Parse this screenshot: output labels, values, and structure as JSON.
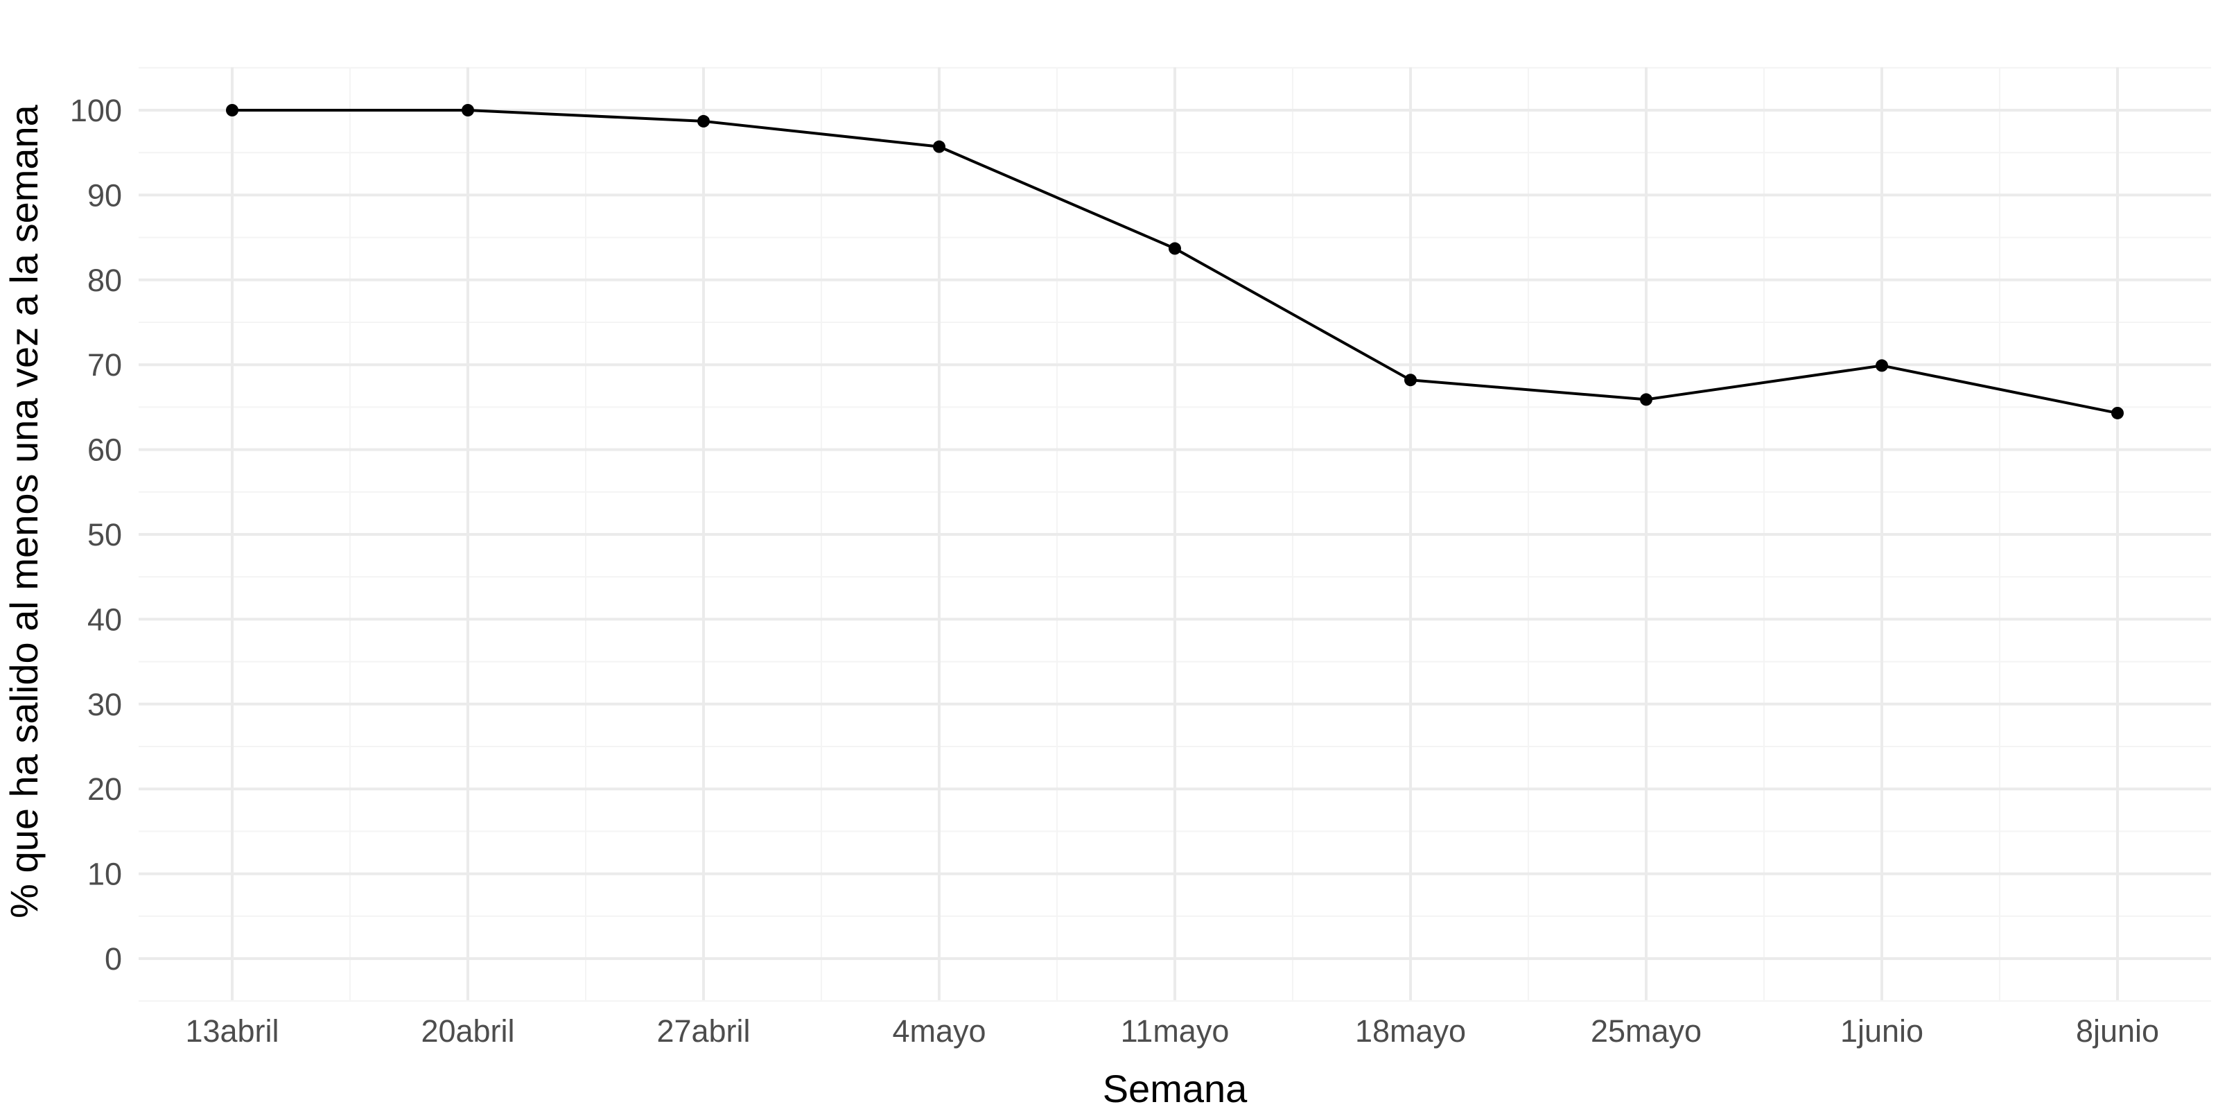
{
  "chart_data": {
    "type": "line",
    "title": "",
    "xlabel": "Semana",
    "ylabel": "% que ha salido al menos una vez a la semana",
    "categories": [
      "13abril",
      "20abril",
      "27abril",
      "4mayo",
      "11mayo",
      "18mayo",
      "25mayo",
      "1junio",
      "8junio"
    ],
    "series": [
      {
        "values": [
          100,
          100,
          98.7,
          95.7,
          83.7,
          68.2,
          65.9,
          69.9,
          64.3
        ]
      }
    ],
    "ylim": [
      -5,
      105
    ],
    "yticks": [
      0,
      10,
      20,
      30,
      40,
      50,
      60,
      70,
      80,
      90,
      100
    ],
    "ytick_labels": [
      "0",
      "10",
      "20",
      "30",
      "40",
      "50",
      "60",
      "70",
      "80",
      "90",
      "100"
    ],
    "grid": true,
    "legend": "none",
    "colors": {
      "line": "#000000",
      "point": "#000000",
      "grid_major": "#ebebeb",
      "grid_minor": "#f4f4f4",
      "tick_text": "#4d4d4d"
    }
  }
}
